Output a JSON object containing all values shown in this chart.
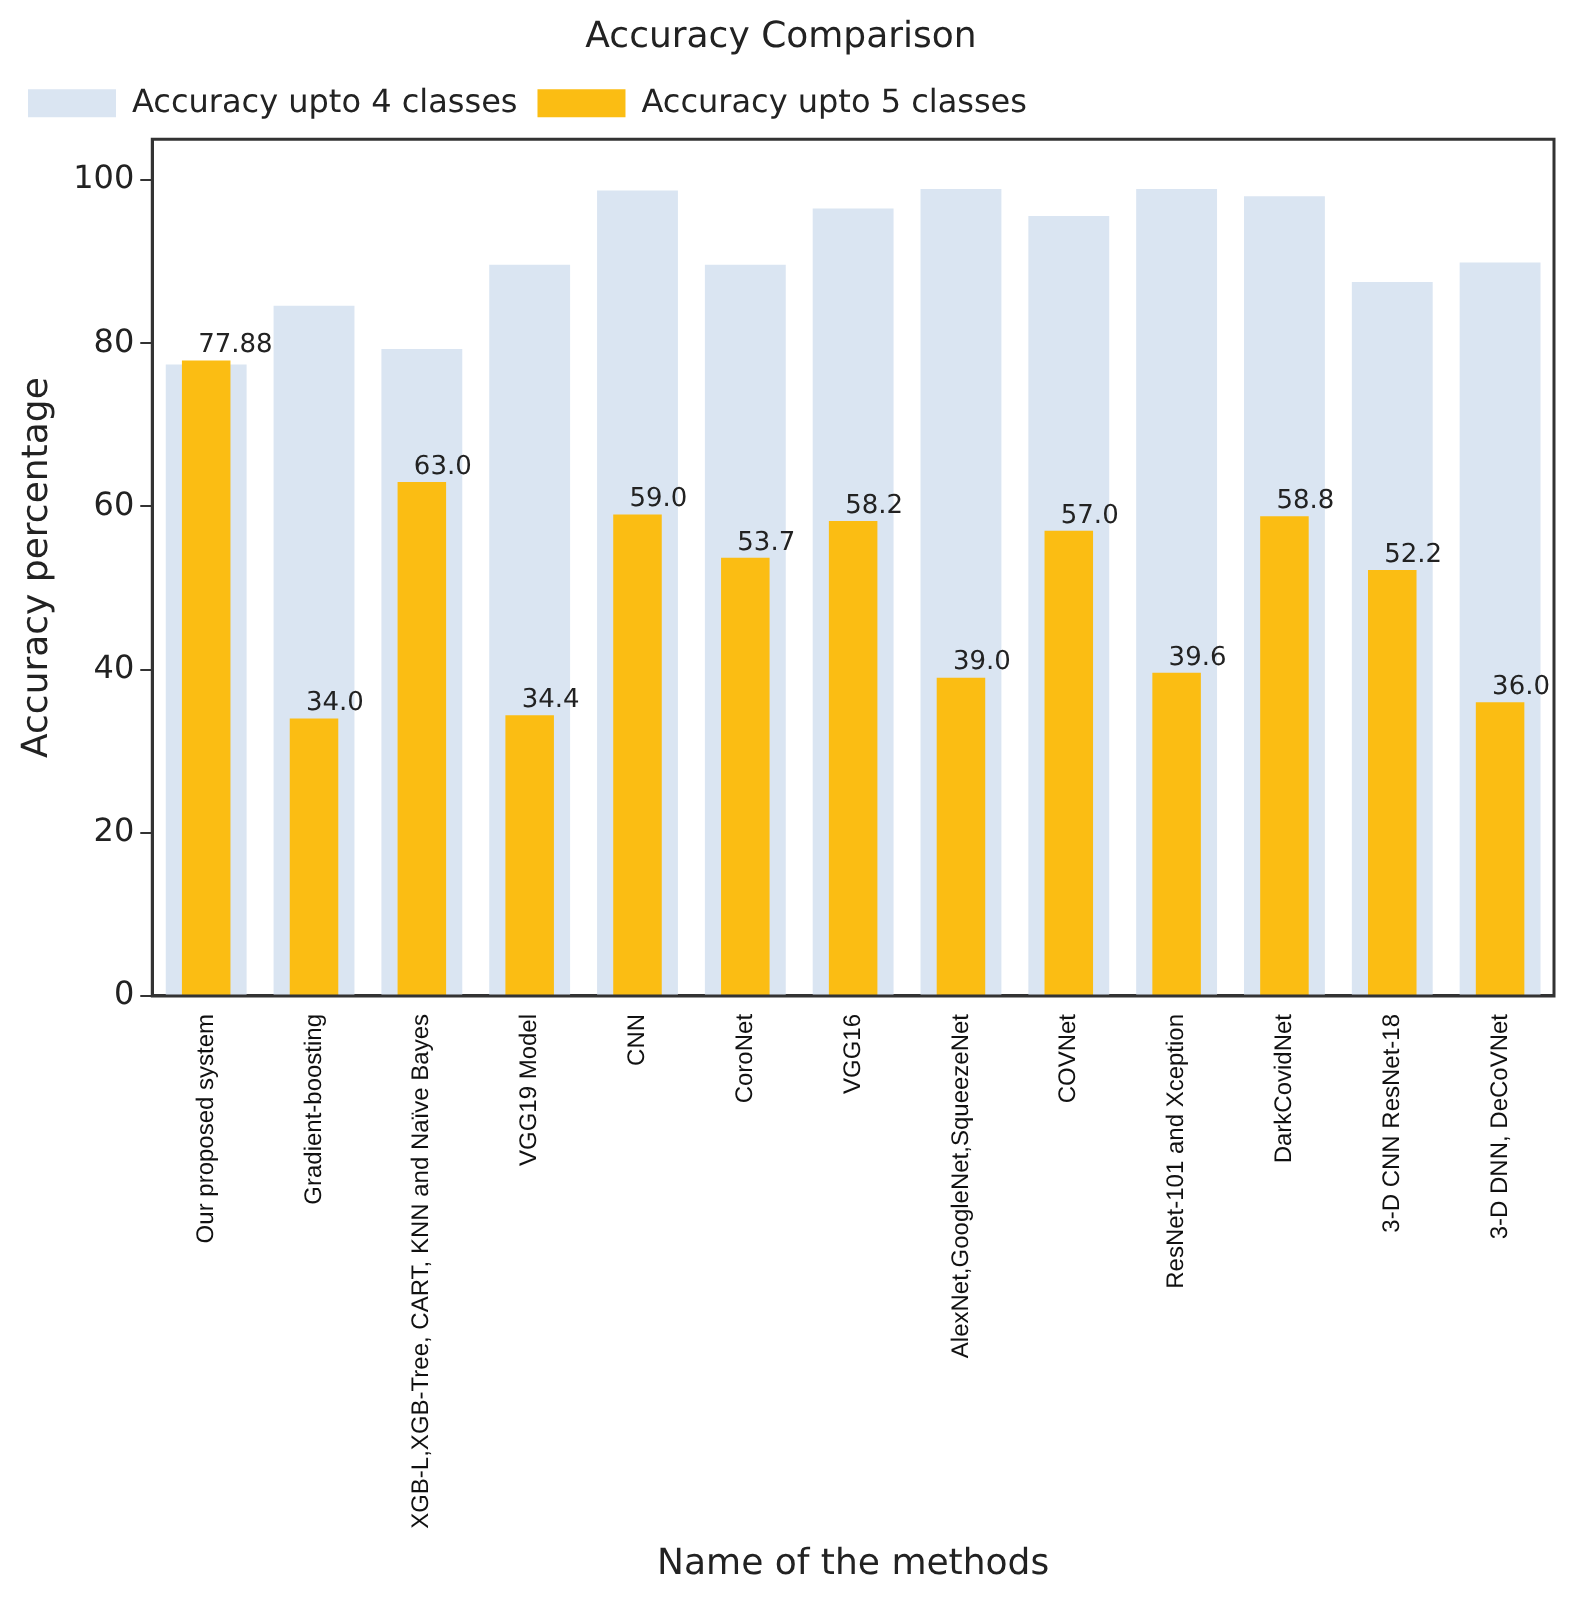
{
  "chart_data": {
    "type": "bar",
    "title": "Accuracy Comparison",
    "xlabel": "Name of the methods",
    "ylabel": "Accuracy percentage",
    "categories": [
      "Our proposed system",
      "Gradient-boosting",
      "XGB-L,XGB-Tree, CART, KNN and Naïve Bayes",
      "VGG19 Model",
      "CNN",
      "CoroNet",
      "VGG16",
      "AlexNet,GoogleNet,SqueezeNet",
      "COVNet",
      "ResNet-101 and Xception",
      "DarkCovidNet",
      "3-D CNN ResNet-18",
      "3-D DNN, DeCoVNet"
    ],
    "series": [
      {
        "name": "Accuracy upto 4 classes",
        "color": "#dae5f2",
        "values": [
          77.4,
          84.6,
          79.3,
          89.6,
          98.7,
          89.6,
          96.5,
          98.9,
          95.6,
          98.9,
          98.0,
          87.5,
          89.9
        ]
      },
      {
        "name": "Accuracy upto 5 classes",
        "color": "#fbbd13",
        "values": [
          77.88,
          34.0,
          63.0,
          34.4,
          59.0,
          53.7,
          58.2,
          39.0,
          57.0,
          39.6,
          58.8,
          52.2,
          36.0
        ],
        "value_labels": [
          "77.88",
          "34.0",
          "63.0",
          "34.4",
          "59.0",
          "53.7",
          "58.2",
          "39.0",
          "57.0",
          "39.6",
          "58.8",
          "52.2",
          "36.0"
        ]
      }
    ],
    "ylim": [
      0,
      105
    ],
    "yticks": [
      0,
      20,
      40,
      60,
      80,
      100
    ],
    "grid": false,
    "legend": "top left"
  }
}
